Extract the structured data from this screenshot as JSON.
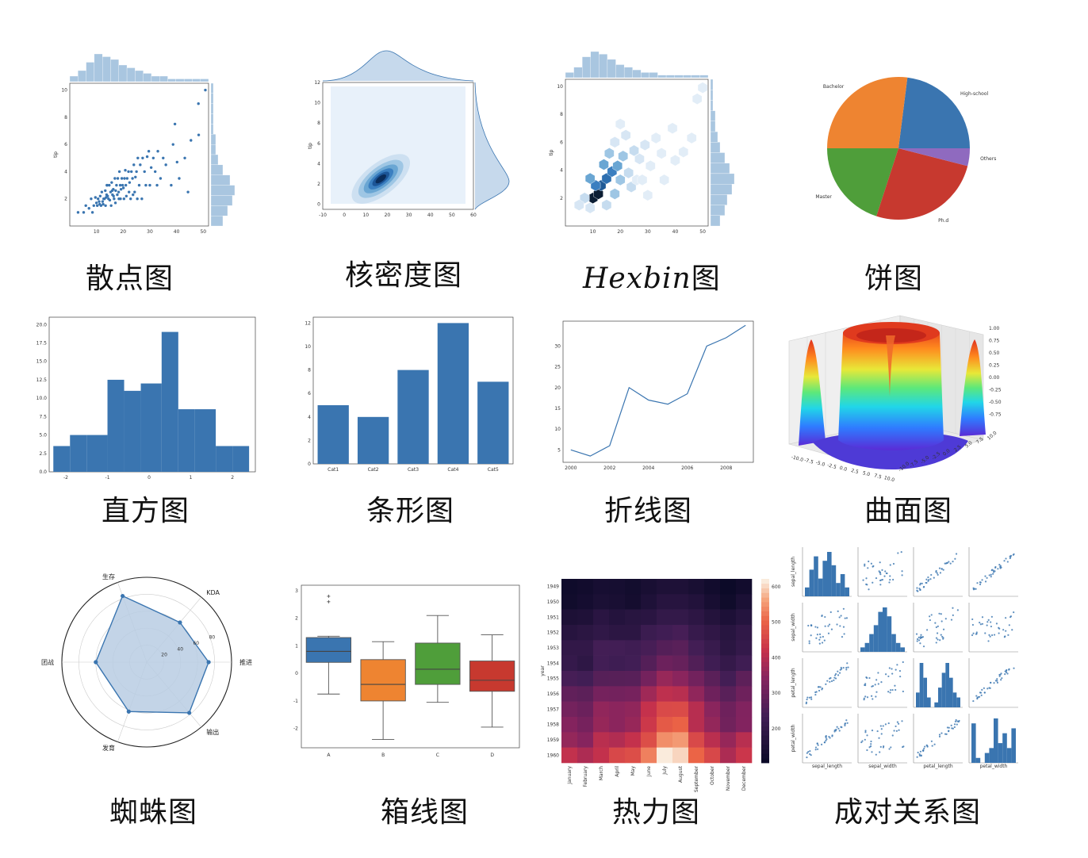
{
  "captions": {
    "scatter": "散点图",
    "kde": "核密度图",
    "hexbin_latin": "Hexbin",
    "hexbin_cjk": "图",
    "pie": "饼图",
    "hist": "直方图",
    "bar": "条形图",
    "line": "折线图",
    "surface": "曲面图",
    "radar": "蜘蛛图",
    "box": "箱线图",
    "heatmap": "热力图",
    "pair": "成对关系图"
  },
  "colors": {
    "blue": "#3a75b0",
    "lightblue": "#a9c6e0",
    "orange": "#ee8431",
    "green": "#4f9e3a",
    "red": "#c7392f",
    "purple": "#8f6abf"
  },
  "chart_data": [
    {
      "type": "scatter",
      "id": "scatter",
      "xlim": [
        0,
        52
      ],
      "ylim": [
        0,
        10.5
      ],
      "x_ticks": [
        10,
        20,
        30,
        40,
        50
      ],
      "y_ticks": [
        2,
        4,
        6,
        8,
        10
      ],
      "ylabel": "tip",
      "points": [
        [
          3.1,
          1.0
        ],
        [
          5.2,
          1.0
        ],
        [
          6.0,
          1.5
        ],
        [
          7.2,
          1.3
        ],
        [
          8.0,
          2.0
        ],
        [
          8.5,
          1.0
        ],
        [
          9.0,
          1.5
        ],
        [
          9.6,
          2.1
        ],
        [
          10.0,
          1.7
        ],
        [
          10.3,
          1.5
        ],
        [
          10.6,
          2.0
        ],
        [
          11.0,
          1.8
        ],
        [
          11.4,
          2.2
        ],
        [
          11.7,
          1.5
        ],
        [
          12.0,
          2.5
        ],
        [
          12.3,
          1.8
        ],
        [
          12.7,
          2.0
        ],
        [
          13.0,
          2.0
        ],
        [
          13.3,
          2.6
        ],
        [
          13.6,
          2.1
        ],
        [
          13.9,
          3.0
        ],
        [
          14.2,
          2.2
        ],
        [
          14.5,
          2.0
        ],
        [
          14.8,
          3.0
        ],
        [
          15.0,
          1.9
        ],
        [
          15.3,
          2.5
        ],
        [
          15.7,
          3.2
        ],
        [
          16.0,
          2.3
        ],
        [
          16.3,
          2.7
        ],
        [
          16.6,
          2.0
        ],
        [
          16.9,
          3.5
        ],
        [
          17.2,
          2.6
        ],
        [
          17.5,
          3.0
        ],
        [
          17.8,
          2.3
        ],
        [
          18.0,
          3.5
        ],
        [
          18.3,
          2.5
        ],
        [
          18.6,
          4.0
        ],
        [
          18.9,
          3.0
        ],
        [
          19.2,
          2.7
        ],
        [
          19.5,
          3.5
        ],
        [
          19.8,
          3.0
        ],
        [
          20.1,
          2.8
        ],
        [
          20.5,
          3.5
        ],
        [
          20.8,
          4.1
        ],
        [
          21.0,
          3.0
        ],
        [
          21.5,
          3.5
        ],
        [
          22.0,
          4.0
        ],
        [
          22.4,
          3.2
        ],
        [
          22.8,
          2.0
        ],
        [
          23.1,
          4.0
        ],
        [
          23.5,
          3.5
        ],
        [
          24.0,
          4.5
        ],
        [
          24.3,
          2.5
        ],
        [
          24.6,
          3.6
        ],
        [
          25.0,
          4.0
        ],
        [
          25.5,
          5.0
        ],
        [
          26.0,
          3.0
        ],
        [
          26.4,
          4.5
        ],
        [
          27.0,
          2.0
        ],
        [
          27.3,
          5.0
        ],
        [
          28.0,
          4.0
        ],
        [
          28.5,
          3.0
        ],
        [
          29.0,
          5.1
        ],
        [
          29.6,
          5.5
        ],
        [
          30.0,
          3.0
        ],
        [
          30.5,
          4.3
        ],
        [
          31.3,
          5.0
        ],
        [
          32.0,
          4.0
        ],
        [
          32.7,
          3.0
        ],
        [
          33.0,
          5.5
        ],
        [
          34.0,
          3.5
        ],
        [
          35.0,
          5.0
        ],
        [
          36.0,
          4.5
        ],
        [
          38.0,
          3.0
        ],
        [
          38.7,
          6.0
        ],
        [
          39.4,
          7.5
        ],
        [
          40.2,
          4.7
        ],
        [
          41.0,
          3.5
        ],
        [
          43.1,
          5.0
        ],
        [
          44.3,
          2.5
        ],
        [
          45.4,
          6.3
        ],
        [
          48.2,
          9.0
        ],
        [
          48.3,
          6.7
        ],
        [
          50.8,
          10.0
        ],
        [
          16.4,
          2.2
        ],
        [
          17.1,
          1.7
        ],
        [
          14.0,
          3.0
        ],
        [
          13.4,
          1.5
        ],
        [
          12.5,
          1.6
        ],
        [
          11.2,
          1.6
        ],
        [
          15.9,
          2.6
        ],
        [
          18.4,
          2.0
        ],
        [
          19.0,
          2.0
        ],
        [
          20.3,
          2.0
        ],
        [
          21.2,
          2.2
        ],
        [
          23.7,
          2.3
        ],
        [
          25.3,
          2.0
        ],
        [
          22.2,
          2.5
        ],
        [
          15.5,
          1.5
        ],
        [
          13.8,
          2.3
        ]
      ]
    },
    {
      "type": "heatmap",
      "id": "kde",
      "x_ticks": [
        -10,
        0,
        10,
        20,
        30,
        40,
        50,
        60
      ],
      "y_ticks": [
        0,
        2,
        4,
        6,
        8,
        10,
        12
      ],
      "ylabel": "tip",
      "peak": [
        17,
        2.5
      ]
    },
    {
      "type": "heatmap",
      "id": "hexbin",
      "x_ticks": [
        10,
        20,
        30,
        40,
        50
      ],
      "y_ticks": [
        2,
        4,
        6,
        8,
        10
      ],
      "ylabel": "tip"
    },
    {
      "type": "pie",
      "id": "pie",
      "slices": [
        {
          "label": "High-school",
          "value": 23
        },
        {
          "label": "Bachelor",
          "value": 27
        },
        {
          "label": "Master",
          "value": 20
        },
        {
          "label": "Ph.d",
          "value": 26
        },
        {
          "label": "Others",
          "value": 4
        }
      ]
    },
    {
      "type": "bar",
      "id": "hist",
      "bin_edges": [
        -2.3,
        -1.9,
        -1.5,
        -1.0,
        -0.6,
        -0.2,
        0.3,
        0.7,
        1.1,
        1.6,
        2.0,
        2.4
      ],
      "counts": [
        3.5,
        5,
        5,
        12.5,
        11,
        12,
        19,
        8.5,
        8.5,
        3.5,
        3.5
      ],
      "x_ticks": [
        -2,
        -1,
        0,
        1,
        2
      ],
      "y_ticks": [
        "0.0",
        "2.5",
        "5.0",
        "7.5",
        "10.0",
        "12.5",
        "15.0",
        "17.5",
        "20.0"
      ],
      "ylim": [
        0,
        21
      ]
    },
    {
      "type": "bar",
      "id": "bar",
      "categories": [
        "Cat1",
        "Cat2",
        "Cat3",
        "Cat4",
        "Cat5"
      ],
      "values": [
        5,
        4,
        8,
        12,
        7
      ],
      "y_ticks": [
        0,
        2,
        4,
        6,
        8,
        10,
        12
      ],
      "ylim": [
        0,
        12.5
      ]
    },
    {
      "type": "line",
      "id": "line",
      "x": [
        2000,
        2001,
        2002,
        2003,
        2004,
        2005,
        2006,
        2007,
        2008,
        2009
      ],
      "y": [
        5,
        3.5,
        6,
        20,
        17,
        16,
        18.5,
        30,
        32,
        35
      ],
      "x_ticks": [
        2000,
        2002,
        2004,
        2006,
        2008
      ],
      "y_ticks": [
        5,
        10,
        15,
        20,
        25,
        30
      ],
      "ylim": [
        2,
        36
      ]
    },
    {
      "type": "heatmap",
      "id": "surface",
      "z_ticks": [
        "1.00",
        "0.75",
        "0.50",
        "0.25",
        "0.00",
        "-0.25",
        "-0.50",
        "-0.75"
      ],
      "x_ticks": [
        "-10.0",
        "-7.5",
        "-5.0",
        "-2.5",
        "0.0",
        "2.5",
        "5.0",
        "7.5",
        "10.0"
      ],
      "y_ticks": [
        "10.0",
        "7.5",
        "5.0",
        "2.5",
        "0.0",
        "-2.5",
        "-5.0",
        "-7.5",
        "-10.0"
      ]
    },
    {
      "type": "line",
      "id": "radar",
      "categories": [
        "生存",
        "KDA",
        "推进",
        "输出",
        "发育",
        "团战"
      ],
      "values": [
        83,
        61,
        73,
        78,
        62,
        60
      ],
      "r_ticks": [
        20,
        40,
        60,
        80
      ],
      "rmax": 100
    },
    {
      "type": "bar",
      "id": "box",
      "categories": [
        "A",
        "B",
        "C",
        "D"
      ],
      "boxes": [
        {
          "low": -0.75,
          "q1": 0.4,
          "med": 0.8,
          "q3": 1.3,
          "high": 1.35,
          "outliers": [
            2.6,
            2.8
          ]
        },
        {
          "low": -2.4,
          "q1": -1.0,
          "med": -0.4,
          "q3": 0.5,
          "high": 1.15,
          "outliers": []
        },
        {
          "low": -1.05,
          "q1": -0.4,
          "med": 0.15,
          "q3": 1.1,
          "high": 2.1,
          "outliers": []
        },
        {
          "low": -1.95,
          "q1": -0.65,
          "med": -0.25,
          "q3": 0.45,
          "high": 1.4,
          "outliers": []
        }
      ],
      "y_ticks": [
        -2,
        -1,
        0,
        1,
        2,
        3
      ],
      "ylim": [
        -2.7,
        3.2
      ]
    },
    {
      "type": "heatmap",
      "id": "heatmap",
      "ylabel": "year",
      "rows": [
        "1949",
        "1950",
        "1951",
        "1952",
        "1953",
        "1954",
        "1955",
        "1956",
        "1957",
        "1958",
        "1959",
        "1960"
      ],
      "cols": [
        "January",
        "February",
        "March",
        "April",
        "May",
        "June",
        "July",
        "August",
        "September",
        "October",
        "November",
        "December"
      ],
      "values": [
        [
          112,
          118,
          132,
          129,
          121,
          135,
          148,
          148,
          136,
          119,
          104,
          118
        ],
        [
          115,
          126,
          141,
          135,
          125,
          149,
          170,
          170,
          158,
          133,
          114,
          140
        ],
        [
          145,
          150,
          178,
          163,
          172,
          178,
          199,
          199,
          184,
          162,
          146,
          166
        ],
        [
          171,
          180,
          193,
          181,
          183,
          218,
          230,
          242,
          209,
          191,
          172,
          194
        ],
        [
          196,
          196,
          236,
          235,
          229,
          243,
          264,
          272,
          237,
          211,
          180,
          201
        ],
        [
          204,
          188,
          235,
          227,
          234,
          264,
          302,
          293,
          259,
          229,
          203,
          229
        ],
        [
          242,
          233,
          267,
          269,
          270,
          315,
          364,
          347,
          312,
          274,
          237,
          278
        ],
        [
          284,
          277,
          317,
          313,
          318,
          374,
          413,
          405,
          355,
          306,
          271,
          306
        ],
        [
          315,
          301,
          356,
          348,
          355,
          422,
          465,
          467,
          404,
          347,
          305,
          336
        ],
        [
          340,
          318,
          362,
          348,
          363,
          435,
          491,
          505,
          404,
          359,
          310,
          337
        ],
        [
          360,
          342,
          406,
          396,
          420,
          472,
          548,
          559,
          463,
          407,
          362,
          405
        ],
        [
          417,
          391,
          419,
          461,
          472,
          535,
          622,
          606,
          508,
          461,
          390,
          432
        ]
      ],
      "cbar_ticks": [
        200,
        300,
        400,
        500,
        600
      ],
      "vmin": 104,
      "vmax": 622
    },
    {
      "type": "scatter",
      "id": "pair",
      "labels": [
        "sepal_length",
        "sepal_width",
        "petal_length",
        "petal_width"
      ]
    }
  ]
}
